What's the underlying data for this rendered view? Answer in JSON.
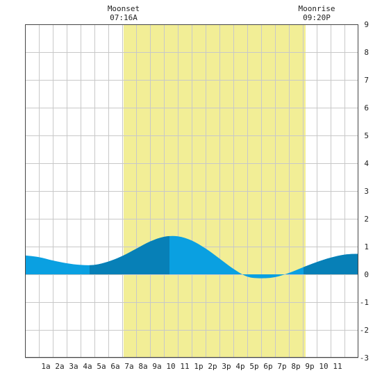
{
  "chart_data": {
    "type": "area",
    "x_unit": "hour of day",
    "xlim": [
      -0.5,
      23.5
    ],
    "ylim": [
      -3,
      9
    ],
    "y_ticks": [
      9,
      8,
      7,
      6,
      5,
      4,
      3,
      2,
      1,
      0,
      -1,
      -2,
      -3
    ],
    "x_ticks": [
      {
        "x": 1,
        "label": "1a"
      },
      {
        "x": 2,
        "label": "2a"
      },
      {
        "x": 3,
        "label": "3a"
      },
      {
        "x": 4,
        "label": "4a"
      },
      {
        "x": 5,
        "label": "5a"
      },
      {
        "x": 6,
        "label": "6a"
      },
      {
        "x": 7,
        "label": "7a"
      },
      {
        "x": 8,
        "label": "8a"
      },
      {
        "x": 9,
        "label": "9a"
      },
      {
        "x": 10,
        "label": "10"
      },
      {
        "x": 11,
        "label": "11"
      },
      {
        "x": 12,
        "label": "1p"
      },
      {
        "x": 13,
        "label": "2p"
      },
      {
        "x": 14,
        "label": "3p"
      },
      {
        "x": 15,
        "label": "4p"
      },
      {
        "x": 16,
        "label": "5p"
      },
      {
        "x": 17,
        "label": "6p"
      },
      {
        "x": 18,
        "label": "7p"
      },
      {
        "x": 19,
        "label": "8p"
      },
      {
        "x": 20,
        "label": "9p"
      },
      {
        "x": 21,
        "label": "10"
      },
      {
        "x": 22,
        "label": "11"
      }
    ],
    "grid": true,
    "series": [
      {
        "x": [
          -0.5,
          0.5,
          1.5,
          2.5,
          3.5,
          4.5,
          5.5,
          6.5,
          7.5,
          8.5,
          9.5,
          10.5,
          11.5,
          12.5,
          13.5,
          14.5,
          15.5,
          16.5,
          17.5,
          18.5,
          19.5,
          20.5,
          21.5,
          22.5,
          23.5
        ],
        "y": [
          0.68,
          0.62,
          0.5,
          0.4,
          0.34,
          0.34,
          0.46,
          0.66,
          0.92,
          1.18,
          1.35,
          1.37,
          1.22,
          0.93,
          0.57,
          0.2,
          -0.08,
          -0.14,
          -0.1,
          0.05,
          0.25,
          0.44,
          0.6,
          0.71,
          0.74
        ]
      }
    ],
    "daylight_band": {
      "from": 6.6,
      "to": 19.7
    },
    "darker_fill_ranges": [
      [
        4.15,
        9.9
      ],
      [
        19.55,
        23.5
      ]
    ],
    "colors": {
      "daylight": "#f2ee96",
      "water": "#0aa0e1",
      "water_dark": "#0780b7",
      "grid": "#c8c8c8",
      "axis": "#444444"
    },
    "annotations": [
      {
        "x": 6.6,
        "title": "Moonset",
        "time": "07:16A"
      },
      {
        "x": 20.5,
        "title": "Moonrise",
        "time": "09:20P"
      }
    ]
  }
}
